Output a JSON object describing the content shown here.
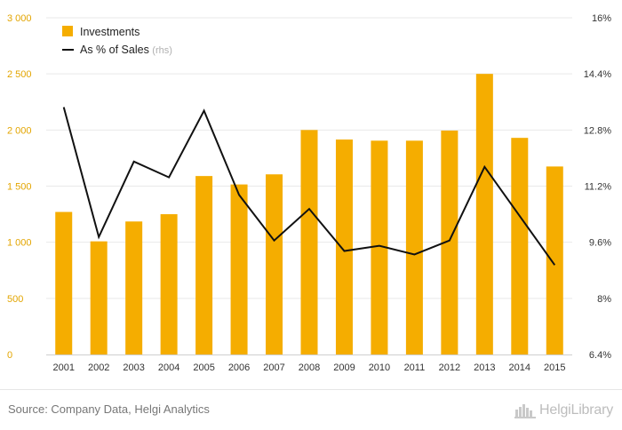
{
  "chart_data": {
    "type": "bar",
    "categories": [
      "2001",
      "2002",
      "2003",
      "2004",
      "2005",
      "2006",
      "2007",
      "2008",
      "2009",
      "2010",
      "2011",
      "2012",
      "2013",
      "2014",
      "2015"
    ],
    "series": [
      {
        "name": "Investments",
        "type": "bar",
        "axis": "left",
        "color": "#f5ad00",
        "values": [
          1270,
          1008,
          1185,
          1250,
          1590,
          1515,
          1605,
          2000,
          1915,
          1905,
          1905,
          1995,
          2500,
          1930,
          1675
        ]
      },
      {
        "name": "As % of Sales",
        "name_suffix": "(rhs)",
        "type": "line",
        "axis": "right",
        "color": "#111111",
        "values": [
          13.45,
          9.75,
          11.9,
          11.45,
          13.35,
          10.95,
          9.65,
          10.55,
          9.35,
          9.5,
          9.25,
          9.65,
          11.75,
          10.35,
          8.95
        ]
      }
    ],
    "y_left": {
      "ylim": [
        0,
        3000
      ],
      "ticks": [
        0,
        500,
        1000,
        1500,
        2000,
        2500,
        3000
      ],
      "tick_labels": [
        "0",
        "500",
        "1 000",
        "1 500",
        "2 000",
        "2 500",
        "3 000"
      ],
      "tick_color": "#e3a500"
    },
    "y_right": {
      "ylim": [
        6.4,
        16
      ],
      "ticks": [
        6.4,
        8,
        9.6,
        11.2,
        12.8,
        14.4,
        16
      ],
      "tick_labels": [
        "6.4%",
        "8%",
        "9.6%",
        "11.2%",
        "12.8%",
        "14.4%",
        "16%"
      ],
      "tick_color": "#333333"
    },
    "legend": {
      "placement": "top-left"
    },
    "grid": true
  },
  "footer": {
    "source": "Source: Company Data, Helgi Analytics",
    "brand": "HelgiLibrary",
    "brand_icon": "city-skyline-icon"
  }
}
